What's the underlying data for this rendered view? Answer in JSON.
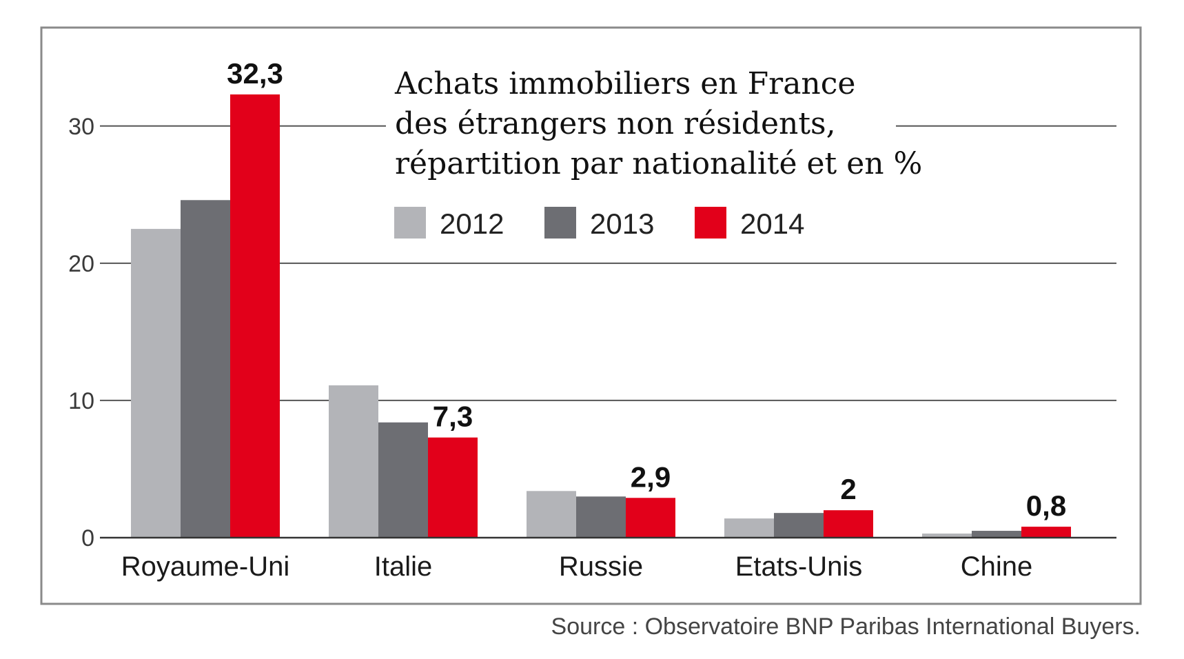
{
  "chart_data": {
    "type": "bar",
    "title": [
      "Achats immobiliers en France",
      "des étrangers non résidents,",
      "répartition par nationalité et en %"
    ],
    "categories": [
      "Royaume-Uni",
      "Italie",
      "Russie",
      "Etats-Unis",
      "Chine"
    ],
    "series": [
      {
        "name": "2012",
        "color": "#b3b4b8",
        "values": [
          22.5,
          11.1,
          3.4,
          1.4,
          0.3
        ]
      },
      {
        "name": "2013",
        "color": "#6d6e73",
        "values": [
          24.6,
          8.4,
          3.0,
          1.8,
          0.5
        ]
      },
      {
        "name": "2014",
        "color": "#e2001a",
        "values": [
          32.3,
          7.3,
          2.9,
          2.0,
          0.8
        ]
      }
    ],
    "data_labels": [
      "32,3",
      "7,3",
      "2,9",
      "2",
      "0,8"
    ],
    "y_ticks": [
      0,
      10,
      20,
      30
    ],
    "y_tick_labels": [
      "0",
      "10",
      "20",
      "30"
    ],
    "ylim": [
      0,
      35
    ],
    "grid": true,
    "legend_position": "top-center",
    "source": "Source : Observatoire BNP Paribas International Buyers."
  }
}
